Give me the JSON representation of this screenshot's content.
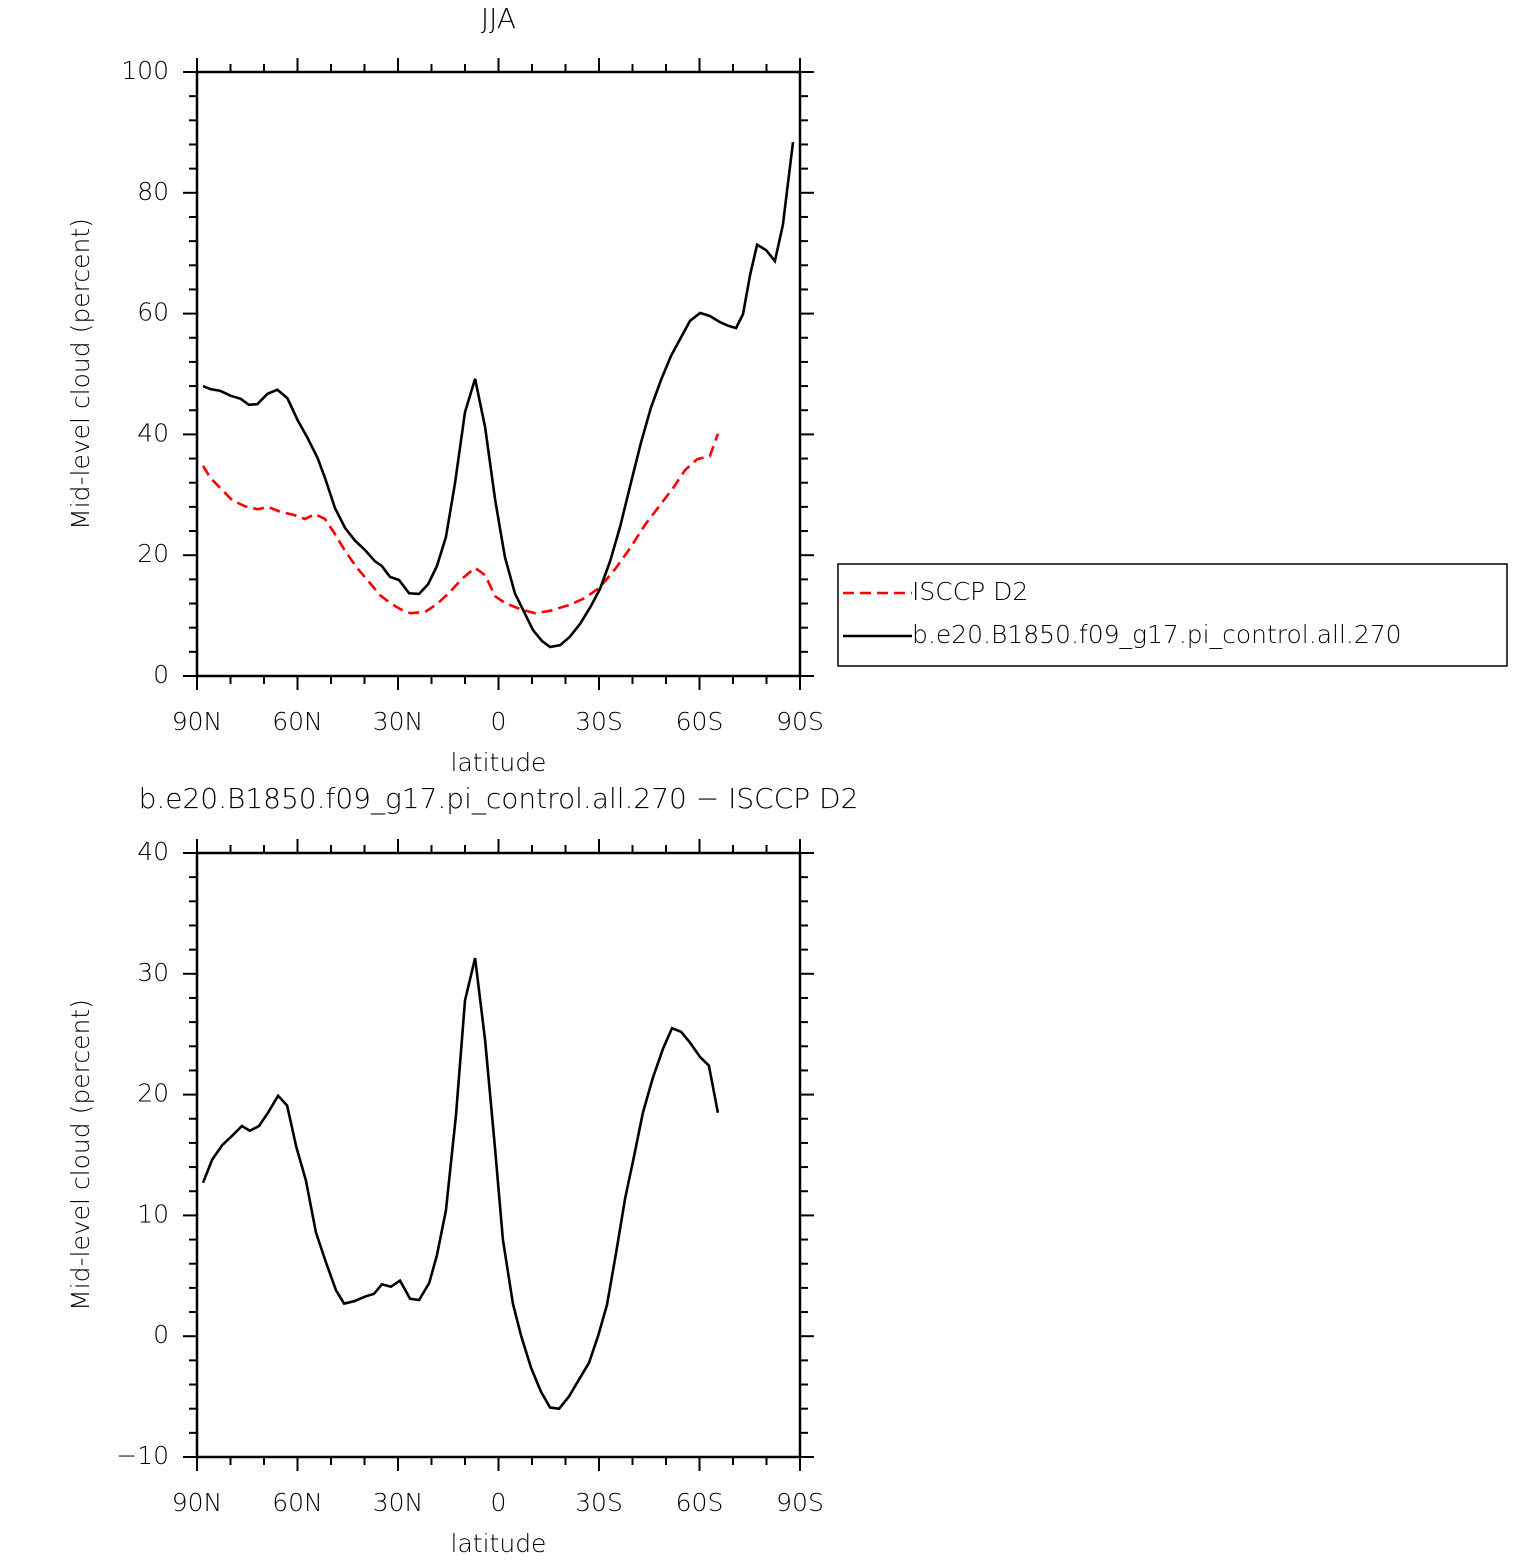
{
  "chart_data": [
    {
      "type": "line",
      "title": "JJA",
      "xlabel": "latitude",
      "ylabel": "Mid-level cloud (percent)",
      "xlim": [
        90,
        -90
      ],
      "xticks": [
        {
          "value": 90,
          "label": "90N"
        },
        {
          "value": 60,
          "label": "60N"
        },
        {
          "value": 30,
          "label": "30N"
        },
        0,
        {
          "value": -30,
          "label": "30S"
        },
        {
          "value": -60,
          "label": "60S"
        },
        {
          "value": -90,
          "label": "90S"
        }
      ],
      "ylim": [
        0,
        100
      ],
      "yticks": [
        0,
        20,
        40,
        60,
        80,
        100
      ],
      "legend": "right",
      "series": [
        {
          "name": "ISCCP D2",
          "color": "#ff0000",
          "dash": true,
          "x": [
            88.2,
            86,
            83,
            79.5,
            75.7,
            71.8,
            68.8,
            65.2,
            61.3,
            57.8,
            54.8,
            51.8,
            48.8,
            45.8,
            42.2,
            38.4,
            35.4,
            32.4,
            29.4,
            26.4,
            21.9,
            18.4,
            14.5,
            10.9,
            7.0,
            4.0,
            1.0,
            -1.9,
            -6.4,
            -10.9,
            -15.4,
            -21.3,
            -25.8,
            -30.3,
            -34.8,
            -39.3,
            -43.7,
            -48.2,
            -52.1,
            -55.7,
            -59.3,
            -63.1,
            -65.5
          ],
          "values": [
            34.8,
            32.8,
            31.1,
            29.1,
            28.1,
            27.6,
            28.0,
            27.2,
            26.7,
            26.0,
            26.8,
            26.0,
            23.5,
            20.7,
            17.9,
            15.4,
            13.4,
            12.1,
            11.1,
            10.4,
            10.6,
            11.9,
            13.9,
            16.1,
            17.9,
            16.7,
            13.2,
            12.1,
            11.1,
            10.4,
            10.8,
            11.8,
            12.9,
            14.7,
            17.7,
            21.2,
            25.0,
            28.3,
            31.1,
            34.1,
            35.9,
            36.4,
            40.1
          ]
        },
        {
          "name": "b.e20.B1850.f09_g17.pi_control.all.270",
          "color": "#000000",
          "dash": false,
          "x": [
            88.2,
            86,
            83,
            80,
            77,
            74.5,
            72,
            69,
            66,
            63,
            60,
            57,
            54,
            51.8,
            48.8,
            45.8,
            42.8,
            39.9,
            36.9,
            34.8,
            32.4,
            29.7,
            26.7,
            23.7,
            21.0,
            18.4,
            15.7,
            13.0,
            10.0,
            7.0,
            4.0,
            1.0,
            -1.9,
            -4.9,
            -7.9,
            -10.3,
            -13.0,
            -15.4,
            -18.4,
            -21.3,
            -24.3,
            -27.3,
            -30.3,
            -33.3,
            -36.3,
            -39.3,
            -42.5,
            -45.5,
            -48.5,
            -51.5,
            -54.5,
            -57.2,
            -60.2,
            -63.1,
            -66.1,
            -68.5,
            -70.9,
            -73.0,
            -75.1,
            -77.2,
            -79.9,
            -82.5,
            -84.9,
            -87.9
          ],
          "values": [
            48.0,
            47.5,
            47.2,
            46.4,
            45.9,
            44.9,
            45.0,
            46.7,
            47.4,
            46.0,
            42.4,
            39.4,
            36.1,
            32.8,
            27.8,
            24.5,
            22.4,
            20.9,
            19.0,
            18.2,
            16.4,
            15.9,
            13.7,
            13.6,
            15.2,
            18.2,
            23.0,
            31.8,
            43.7,
            49.2,
            41.2,
            29.1,
            19.7,
            13.7,
            10.3,
            7.6,
            5.8,
            4.8,
            5.1,
            6.5,
            8.6,
            11.3,
            14.4,
            19.0,
            24.7,
            31.5,
            38.6,
            44.4,
            49.0,
            53.0,
            56.1,
            58.8,
            60.1,
            59.6,
            58.6,
            58.0,
            57.6,
            59.9,
            66.4,
            71.4,
            70.5,
            68.7,
            74.7,
            88.4
          ]
        }
      ]
    },
    {
      "type": "line",
      "title": "b.e20.B1850.f09_g17.pi_control.all.270 − ISCCP D2",
      "xlabel": "latitude",
      "ylabel": "Mid-level cloud (percent)",
      "xlim": [
        90,
        -90
      ],
      "xticks": [
        {
          "value": 90,
          "label": "90N"
        },
        {
          "value": 60,
          "label": "60N"
        },
        {
          "value": 30,
          "label": "30N"
        },
        0,
        {
          "value": -30,
          "label": "30S"
        },
        {
          "value": -60,
          "label": "60S"
        },
        {
          "value": -90,
          "label": "90S"
        }
      ],
      "ylim": [
        -10,
        40
      ],
      "yticks": [
        {
          "value": -10,
          "label": "−10"
        },
        0,
        10,
        20,
        30,
        40
      ],
      "series": [
        {
          "color": "#000000",
          "dash": false,
          "x": [
            88.2,
            85.5,
            82.5,
            79.5,
            76.6,
            74.2,
            71.5,
            68.8,
            65.8,
            63.1,
            60.4,
            57.5,
            54.5,
            51.5,
            48.5,
            46.1,
            43.1,
            39.6,
            37.2,
            34.8,
            32.1,
            29.4,
            26.4,
            23.7,
            20.7,
            18.4,
            15.7,
            12.7,
            10.0,
            7.0,
            4.0,
            1.0,
            -1.3,
            -4.3,
            -6.7,
            -9.7,
            -12.7,
            -15.4,
            -18.1,
            -21.0,
            -24.0,
            -27.0,
            -29.7,
            -32.4,
            -35.1,
            -37.8,
            -40.4,
            -43.1,
            -46.1,
            -49.1,
            -51.8,
            -54.5,
            -57.2,
            -60.2,
            -62.8,
            -65.5
          ],
          "values": [
            12.7,
            14.6,
            15.8,
            16.6,
            17.4,
            17.0,
            17.4,
            18.5,
            19.9,
            19.1,
            15.7,
            12.9,
            8.6,
            6.1,
            3.8,
            2.7,
            2.9,
            3.3,
            3.5,
            4.3,
            4.1,
            4.6,
            3.1,
            3.0,
            4.4,
            6.7,
            10.4,
            18.3,
            27.8,
            31.3,
            24.5,
            15.4,
            8.0,
            2.7,
            0.1,
            -2.6,
            -4.6,
            -5.9,
            -6.0,
            -5.0,
            -3.6,
            -2.2,
            0.0,
            2.6,
            6.9,
            11.4,
            14.8,
            18.5,
            21.4,
            23.8,
            25.5,
            25.2,
            24.3,
            23.1,
            22.4,
            18.5
          ]
        }
      ]
    }
  ]
}
